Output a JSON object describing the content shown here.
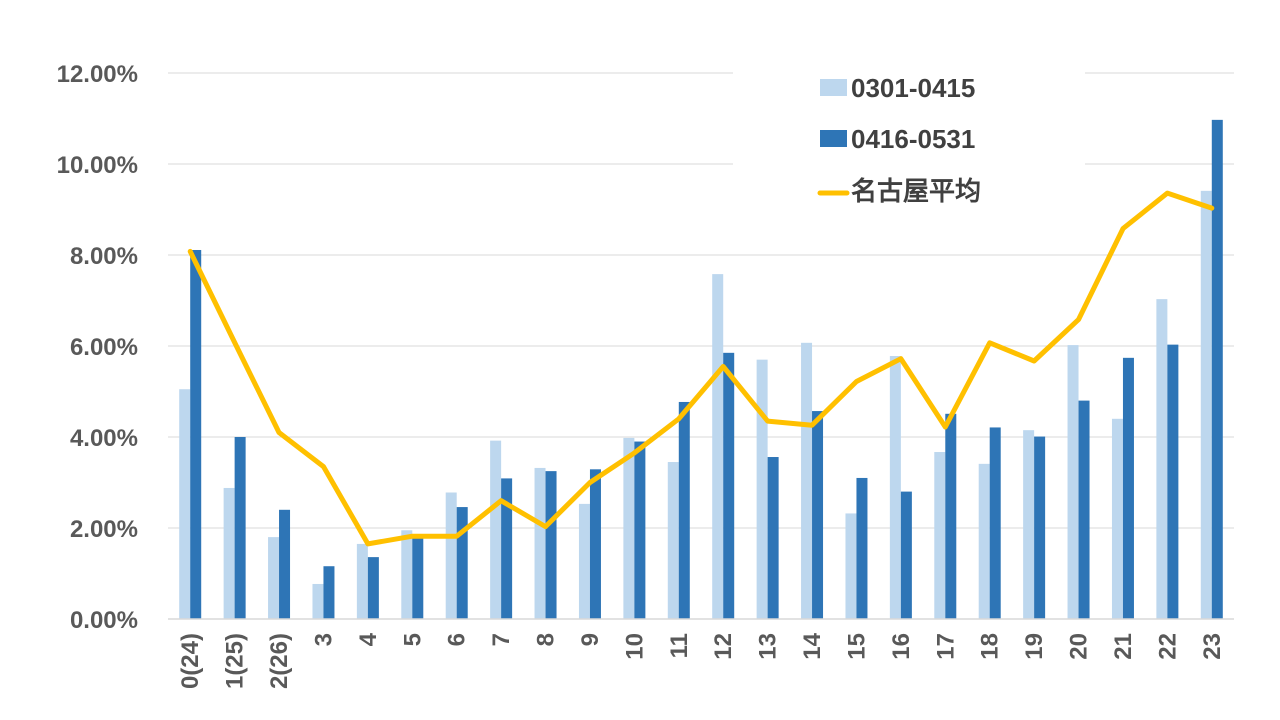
{
  "chart_data": {
    "type": "bar",
    "categories": [
      "0(24)",
      "1(25)",
      "2(26)",
      "3",
      "4",
      "5",
      "6",
      "7",
      "8",
      "9",
      "10",
      "11",
      "12",
      "13",
      "14",
      "15",
      "16",
      "17",
      "18",
      "19",
      "20",
      "21",
      "22",
      "23"
    ],
    "series": [
      {
        "name": "0301-0415",
        "type": "bar",
        "color": "#bdd7ee",
        "values": [
          5.05,
          2.88,
          1.8,
          0.77,
          1.65,
          1.95,
          2.78,
          3.92,
          3.32,
          2.53,
          3.98,
          3.45,
          7.58,
          5.7,
          6.07,
          2.32,
          5.78,
          3.67,
          3.41,
          4.15,
          6.02,
          4.4,
          7.03,
          9.41
        ]
      },
      {
        "name": "0416-0531",
        "type": "bar",
        "color": "#2e75b6",
        "values": [
          8.11,
          4.0,
          2.4,
          1.16,
          1.36,
          1.84,
          2.46,
          3.09,
          3.25,
          3.29,
          3.9,
          4.77,
          5.85,
          3.56,
          4.57,
          3.1,
          2.8,
          4.51,
          4.21,
          4.01,
          4.8,
          5.74,
          6.03,
          10.97
        ]
      },
      {
        "name": "名古屋平均",
        "type": "line",
        "color": "#ffc000",
        "values": [
          8.08,
          6.08,
          4.1,
          3.35,
          1.65,
          1.82,
          1.82,
          2.6,
          2.03,
          3.0,
          3.65,
          4.4,
          5.55,
          4.35,
          4.26,
          5.22,
          5.72,
          4.22,
          6.07,
          5.67,
          6.58,
          8.58,
          9.36,
          9.03
        ]
      }
    ],
    "y_ticks": [
      "0.00%",
      "2.00%",
      "4.00%",
      "6.00%",
      "8.00%",
      "10.00%",
      "12.00%"
    ],
    "ylim": [
      0,
      12
    ],
    "grid": true,
    "legend_position": "top-right",
    "title": "",
    "xlabel": "",
    "ylabel": ""
  }
}
